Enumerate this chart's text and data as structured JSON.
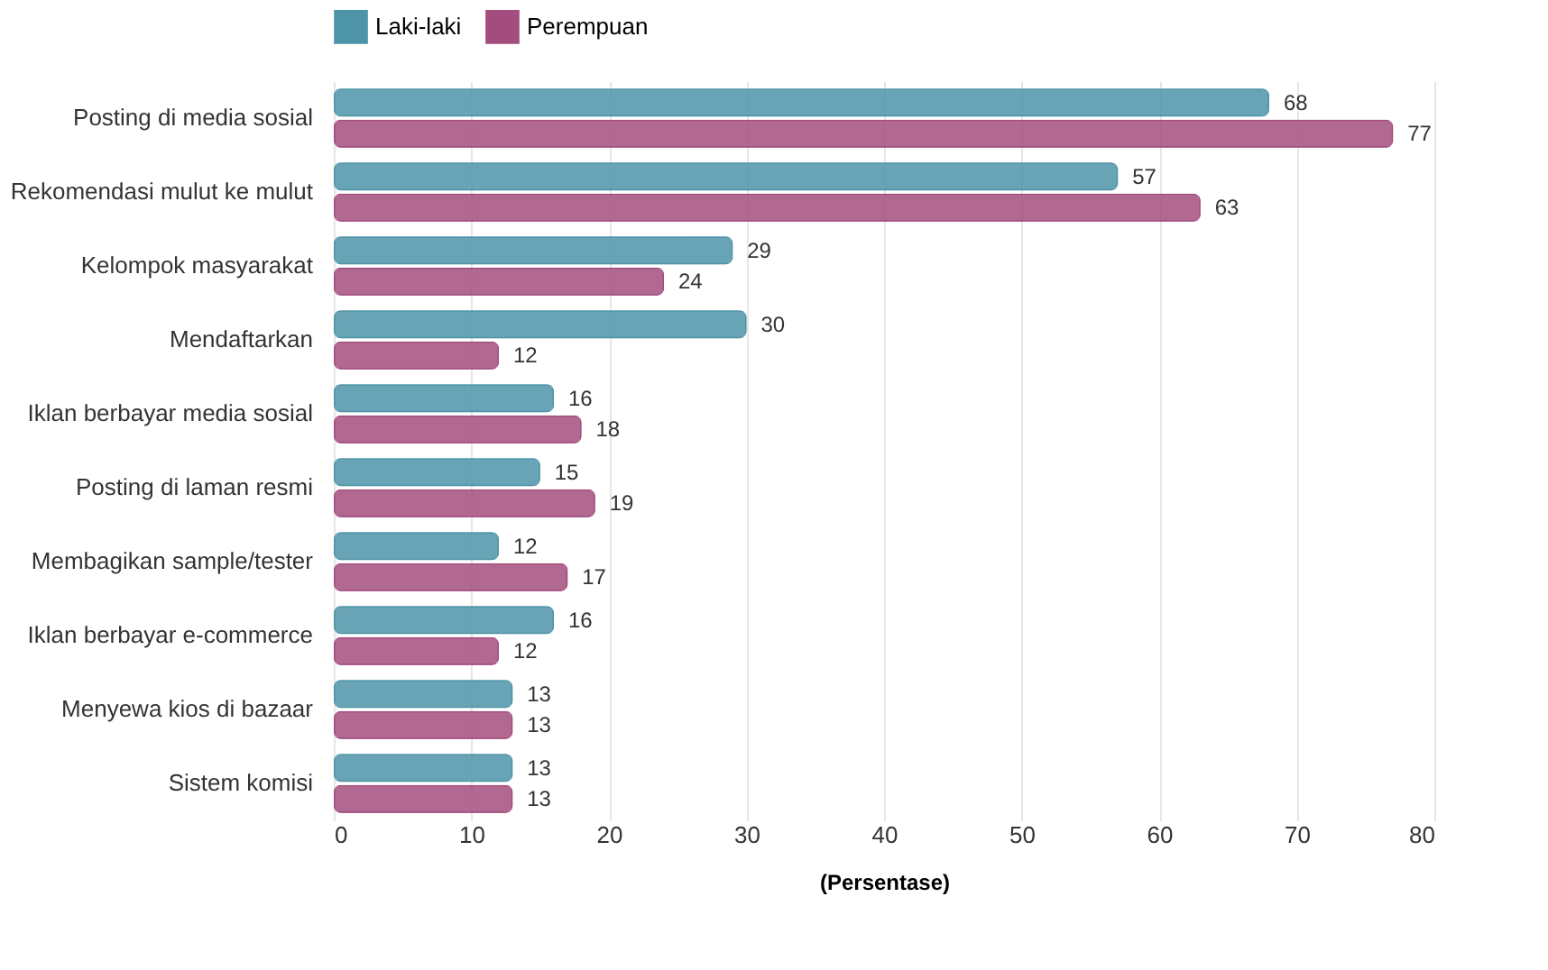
{
  "chart_data": {
    "type": "bar",
    "orientation": "horizontal",
    "xlabel": "(Persentase)",
    "categories": [
      "Posting di media sosial",
      "Rekomendasi mulut ke mulut",
      "Kelompok masyarakat",
      "Mendaftarkan",
      "Iklan berbayar media sosial",
      "Posting di laman resmi",
      "Membagikan sample/tester",
      "Iklan berbayar e-commerce",
      "Menyewa kios di bazaar",
      "Sistem komisi"
    ],
    "series": [
      {
        "name": "Laki-laki",
        "color": "#4e94a8",
        "values": [
          68,
          57,
          29,
          30,
          16,
          15,
          12,
          16,
          13,
          13
        ]
      },
      {
        "name": "Perempuan",
        "color": "#a34d7e",
        "values": [
          77,
          63,
          24,
          12,
          18,
          19,
          17,
          12,
          13,
          13
        ]
      }
    ],
    "xlim": [
      0,
      80
    ],
    "xticks": [
      0,
      10,
      20,
      30,
      40,
      50,
      60,
      70,
      80
    ],
    "grid": "x",
    "legend": "top",
    "data_labels": true
  }
}
